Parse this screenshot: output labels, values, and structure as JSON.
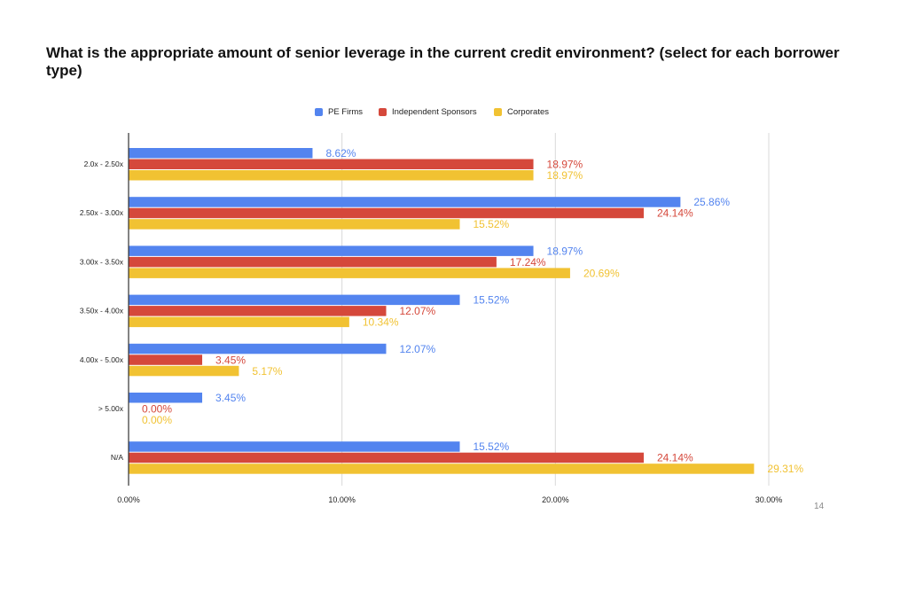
{
  "slide": {
    "title": "What is the appropriate amount of senior leverage in the current credit environment? (select for each borrower type)",
    "page_number": "14"
  },
  "colors": {
    "pe_firms": "#5384ef",
    "independent_sponsors": "#d5483b",
    "corporates": "#f1c232",
    "axis": "#333333",
    "grid": "#d9d9d9"
  },
  "chart_data": {
    "type": "bar",
    "orientation": "horizontal",
    "categories": [
      "2.0x - 2.50x",
      "2.50x - 3.00x",
      "3.00x - 3.50x",
      "3.50x - 4.00x",
      "4.00x - 5.00x",
      "> 5.00x",
      "N/A"
    ],
    "series": [
      {
        "name": "PE Firms",
        "color": "#5384ef",
        "values": [
          8.62,
          25.86,
          18.97,
          15.52,
          12.07,
          3.45,
          15.52
        ],
        "labels": [
          "8.62%",
          "25.86%",
          "18.97%",
          "15.52%",
          "12.07%",
          "3.45%",
          "15.52%"
        ]
      },
      {
        "name": "Independent Sponsors",
        "color": "#d5483b",
        "values": [
          18.97,
          24.14,
          17.24,
          12.07,
          3.45,
          0.0,
          24.14
        ],
        "labels": [
          "18.97%",
          "24.14%",
          "17.24%",
          "12.07%",
          "3.45%",
          "0.00%",
          "24.14%"
        ]
      },
      {
        "name": "Corporates",
        "color": "#f1c232",
        "values": [
          18.97,
          15.52,
          20.69,
          10.34,
          5.17,
          0.0,
          29.31
        ],
        "labels": [
          "18.97%",
          "15.52%",
          "20.69%",
          "10.34%",
          "5.17%",
          "0.00%",
          "29.31%"
        ]
      }
    ],
    "xlim": [
      0,
      30
    ],
    "x_ticks": [
      0,
      10,
      20,
      30
    ],
    "x_tick_labels": [
      "0.00%",
      "10.00%",
      "20.00%",
      "30.00%"
    ],
    "grid": true,
    "legend_position": "top-center"
  }
}
